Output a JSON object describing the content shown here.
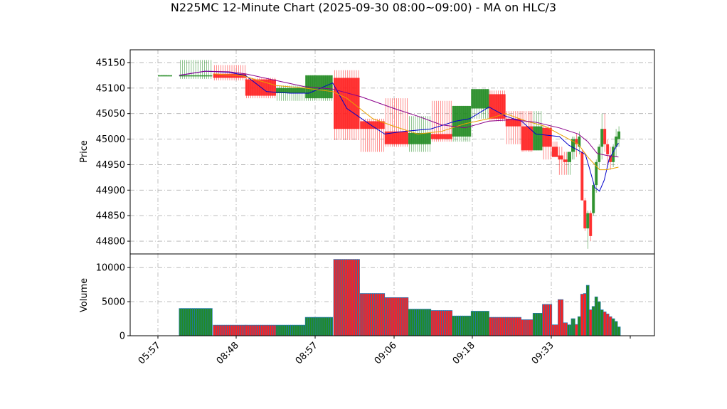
{
  "chart_data": {
    "type": "candlestick",
    "title": "N225MC 12-Minute Chart (2025-09-30 08:00~09:00) - MA on HLC/3",
    "price_panel": {
      "ylabel": "Price",
      "ylim": [
        44775,
        45175
      ],
      "yticks": [
        44800,
        44850,
        44900,
        44950,
        45000,
        45050,
        45100,
        45150
      ]
    },
    "volume_panel": {
      "ylabel": "Volume",
      "ylim": [
        0,
        12000
      ],
      "yticks": [
        0,
        5000,
        10000
      ]
    },
    "x_tick_labels": [
      "05:57",
      "08:48",
      "08:57",
      "09:06",
      "09:18",
      "09:33",
      ""
    ],
    "colors": {
      "up": "#228b22",
      "down": "#ff2020",
      "volume_edge": "#1f77b4",
      "ma_fast": "#0000cc",
      "ma_mid": "#e8a000",
      "ma_slow": "#8b008b",
      "grid": "#b0b0b0"
    },
    "bars": [
      {
        "x": 0.0,
        "w": 0.03,
        "o": 45125,
        "h": 45126,
        "l": 45124,
        "c": 45125,
        "v": 0
      },
      {
        "x": 0.045,
        "w": 0.07,
        "o": 45125,
        "h": 45155,
        "l": 45118,
        "c": 45125,
        "v": 4000
      },
      {
        "x": 0.117,
        "w": 0.07,
        "o": 45128,
        "h": 45145,
        "l": 45115,
        "c": 45120,
        "v": 1550
      },
      {
        "x": 0.185,
        "w": 0.065,
        "o": 45117,
        "h": 45120,
        "l": 45080,
        "c": 45085,
        "v": 1550
      },
      {
        "x": 0.25,
        "w": 0.062,
        "o": 45090,
        "h": 45105,
        "l": 45075,
        "c": 45100,
        "v": 1550
      },
      {
        "x": 0.312,
        "w": 0.058,
        "o": 45080,
        "h": 45125,
        "l": 45075,
        "c": 45125,
        "v": 2700
      },
      {
        "x": 0.372,
        "w": 0.055,
        "o": 45120,
        "h": 45135,
        "l": 44998,
        "c": 45020,
        "v": 11200
      },
      {
        "x": 0.428,
        "w": 0.052,
        "o": 45035,
        "h": 45040,
        "l": 44975,
        "c": 45020,
        "v": 6200
      },
      {
        "x": 0.48,
        "w": 0.05,
        "o": 45015,
        "h": 45080,
        "l": 44985,
        "c": 44990,
        "v": 5600
      },
      {
        "x": 0.53,
        "w": 0.048,
        "o": 44990,
        "h": 45045,
        "l": 44975,
        "c": 45012,
        "v": 3900
      },
      {
        "x": 0.578,
        "w": 0.045,
        "o": 45010,
        "h": 45075,
        "l": 44995,
        "c": 45000,
        "v": 3700
      },
      {
        "x": 0.623,
        "w": 0.04,
        "o": 45005,
        "h": 45065,
        "l": 44995,
        "c": 45065,
        "v": 2900
      },
      {
        "x": 0.663,
        "w": 0.038,
        "o": 45060,
        "h": 45098,
        "l": 45040,
        "c": 45098,
        "v": 3600
      },
      {
        "x": 0.701,
        "w": 0.035,
        "o": 45088,
        "h": 45095,
        "l": 45035,
        "c": 45040,
        "v": 2700
      },
      {
        "x": 0.736,
        "w": 0.033,
        "o": 45040,
        "h": 45055,
        "l": 44990,
        "c": 45025,
        "v": 2700
      },
      {
        "x": 0.769,
        "w": 0.025,
        "o": 45025,
        "h": 45055,
        "l": 44975,
        "c": 44978,
        "v": 2350
      },
      {
        "x": 0.794,
        "w": 0.02,
        "o": 44978,
        "h": 45055,
        "l": 44978,
        "c": 45025,
        "v": 3300
      },
      {
        "x": 0.814,
        "w": 0.02,
        "o": 45022,
        "h": 45025,
        "l": 44960,
        "c": 44985,
        "v": 4600
      },
      {
        "x": 0.834,
        "w": 0.013,
        "o": 44985,
        "h": 44995,
        "l": 44965,
        "c": 44965,
        "v": 1600
      },
      {
        "x": 0.847,
        "w": 0.011,
        "o": 44968,
        "h": 44985,
        "l": 44930,
        "c": 44960,
        "v": 5300
      },
      {
        "x": 0.858,
        "w": 0.009,
        "o": 44960,
        "h": 44975,
        "l": 44930,
        "c": 44955,
        "v": 1900
      },
      {
        "x": 0.867,
        "w": 0.008,
        "o": 44955,
        "h": 44965,
        "l": 44930,
        "c": 44975,
        "v": 1600
      },
      {
        "x": 0.875,
        "w": 0.008,
        "o": 44975,
        "h": 45005,
        "l": 44960,
        "c": 45000,
        "v": 2500
      },
      {
        "x": 0.883,
        "w": 0.006,
        "o": 45000,
        "h": 45010,
        "l": 44965,
        "c": 44990,
        "v": 1650
      },
      {
        "x": 0.889,
        "w": 0.006,
        "o": 44985,
        "h": 45015,
        "l": 44970,
        "c": 45005,
        "v": 2800
      },
      {
        "x": 0.895,
        "w": 0.006,
        "o": 44975,
        "h": 44980,
        "l": 44880,
        "c": 44880,
        "v": 6100
      },
      {
        "x": 0.901,
        "w": 0.006,
        "o": 44880,
        "h": 44885,
        "l": 44820,
        "c": 44825,
        "v": 6200
      },
      {
        "x": 0.907,
        "w": 0.006,
        "o": 44825,
        "h": 44860,
        "l": 44785,
        "c": 44855,
        "v": 7400
      },
      {
        "x": 0.913,
        "w": 0.006,
        "o": 44855,
        "h": 44860,
        "l": 44800,
        "c": 44810,
        "v": 3800
      },
      {
        "x": 0.919,
        "w": 0.006,
        "o": 44855,
        "h": 44915,
        "l": 44850,
        "c": 44910,
        "v": 4300
      },
      {
        "x": 0.925,
        "w": 0.006,
        "o": 44910,
        "h": 44960,
        "l": 44895,
        "c": 44955,
        "v": 5700
      },
      {
        "x": 0.931,
        "w": 0.006,
        "o": 44955,
        "h": 44990,
        "l": 44940,
        "c": 44985,
        "v": 5000
      },
      {
        "x": 0.937,
        "w": 0.006,
        "o": 44985,
        "h": 45050,
        "l": 44960,
        "c": 45020,
        "v": 3800
      },
      {
        "x": 0.943,
        "w": 0.006,
        "o": 45020,
        "h": 45050,
        "l": 44975,
        "c": 44990,
        "v": 3500
      },
      {
        "x": 0.949,
        "w": 0.006,
        "o": 44990,
        "h": 45000,
        "l": 44945,
        "c": 44970,
        "v": 3200
      },
      {
        "x": 0.955,
        "w": 0.006,
        "o": 44968,
        "h": 44985,
        "l": 44940,
        "c": 44955,
        "v": 2800
      },
      {
        "x": 0.961,
        "w": 0.006,
        "o": 44955,
        "h": 44990,
        "l": 44945,
        "c": 44985,
        "v": 2500
      },
      {
        "x": 0.967,
        "w": 0.006,
        "o": 44985,
        "h": 45020,
        "l": 44965,
        "c": 45005,
        "v": 2100
      },
      {
        "x": 0.973,
        "w": 0.006,
        "o": 45000,
        "h": 45025,
        "l": 44985,
        "c": 45015,
        "v": 1300
      }
    ],
    "ma_fast": [
      [
        0.045,
        45125
      ],
      [
        0.1,
        45133
      ],
      [
        0.15,
        45131
      ],
      [
        0.185,
        45125
      ],
      [
        0.23,
        45093
      ],
      [
        0.28,
        45090
      ],
      [
        0.32,
        45090
      ],
      [
        0.37,
        45110
      ],
      [
        0.4,
        45060
      ],
      [
        0.455,
        45025
      ],
      [
        0.48,
        45010
      ],
      [
        0.52,
        45015
      ],
      [
        0.578,
        45020
      ],
      [
        0.63,
        45035
      ],
      [
        0.66,
        45040
      ],
      [
        0.701,
        45063
      ],
      [
        0.736,
        45045
      ],
      [
        0.77,
        45035
      ],
      [
        0.8,
        45010
      ],
      [
        0.85,
        45005
      ],
      [
        0.87,
        44988
      ],
      [
        0.89,
        44978
      ],
      [
        0.905,
        44970
      ],
      [
        0.913,
        44945
      ],
      [
        0.925,
        44905
      ],
      [
        0.935,
        44898
      ],
      [
        0.945,
        44920
      ],
      [
        0.955,
        44960
      ],
      [
        0.967,
        44980
      ],
      [
        0.975,
        44992
      ]
    ],
    "ma_mid": [
      [
        0.117,
        45128
      ],
      [
        0.18,
        45124
      ],
      [
        0.25,
        45105
      ],
      [
        0.31,
        45100
      ],
      [
        0.37,
        45093
      ],
      [
        0.4,
        45080
      ],
      [
        0.455,
        45040
      ],
      [
        0.5,
        45025
      ],
      [
        0.55,
        45010
      ],
      [
        0.6,
        45015
      ],
      [
        0.65,
        45030
      ],
      [
        0.7,
        45040
      ],
      [
        0.736,
        45050
      ],
      [
        0.78,
        45035
      ],
      [
        0.82,
        45025
      ],
      [
        0.85,
        45010
      ],
      [
        0.89,
        44990
      ],
      [
        0.91,
        44965
      ],
      [
        0.925,
        44950
      ],
      [
        0.935,
        44940
      ],
      [
        0.95,
        44940
      ],
      [
        0.975,
        44945
      ]
    ],
    "ma_slow": [
      [
        0.045,
        45125
      ],
      [
        0.1,
        45133
      ],
      [
        0.15,
        45132
      ],
      [
        0.185,
        45128
      ],
      [
        0.25,
        45115
      ],
      [
        0.31,
        45103
      ],
      [
        0.37,
        45098
      ],
      [
        0.43,
        45083
      ],
      [
        0.5,
        45060
      ],
      [
        0.55,
        45045
      ],
      [
        0.6,
        45028
      ],
      [
        0.65,
        45022
      ],
      [
        0.7,
        45035
      ],
      [
        0.75,
        45038
      ],
      [
        0.8,
        45033
      ],
      [
        0.85,
        45022
      ],
      [
        0.89,
        45010
      ],
      [
        0.91,
        44995
      ],
      [
        0.93,
        44972
      ],
      [
        0.95,
        44968
      ],
      [
        0.975,
        44965
      ]
    ]
  }
}
